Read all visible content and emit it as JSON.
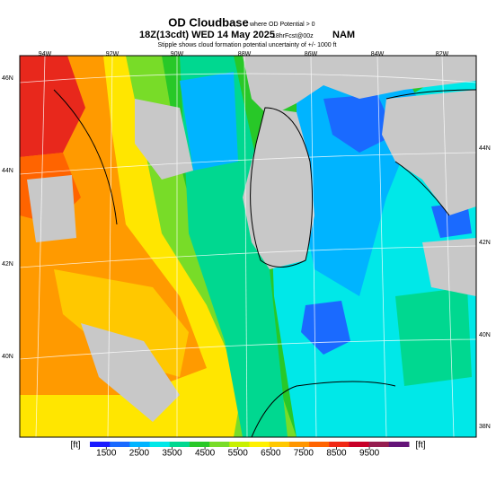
{
  "header": {
    "title": "OD Cloudbase",
    "title_note": "where OD Potential > 0",
    "valid_time": "18Z(13cdt) WED 14 May 2025",
    "forecast": "18hrFcst@00z",
    "model": "NAM",
    "subtitle": "Stipple shows cloud formation potential uncertainty of +/- 1000 ft"
  },
  "map": {
    "lon_labels": [
      "94W",
      "92W",
      "90W",
      "88W",
      "86W",
      "84W",
      "82W"
    ],
    "lat_labels_left": [
      "46N",
      "44N",
      "42N",
      "40N"
    ],
    "lat_labels_right": [
      "44N",
      "42N",
      "40N",
      "38N"
    ]
  },
  "colorbar": {
    "unit_left": "[ft]",
    "unit_right": "[ft]",
    "lim": [
      1000,
      10700
    ],
    "ticks": [
      1500,
      2500,
      3500,
      4500,
      5500,
      6500,
      7500,
      8500,
      9500
    ],
    "colors": [
      "#1a1aff",
      "#1a6aff",
      "#00b4ff",
      "#00e8e8",
      "#00d890",
      "#28c828",
      "#78dc28",
      "#c8f000",
      "#fff000",
      "#ffc800",
      "#ff9600",
      "#ff6400",
      "#f02814",
      "#c80028",
      "#961e50",
      "#641478"
    ]
  }
}
